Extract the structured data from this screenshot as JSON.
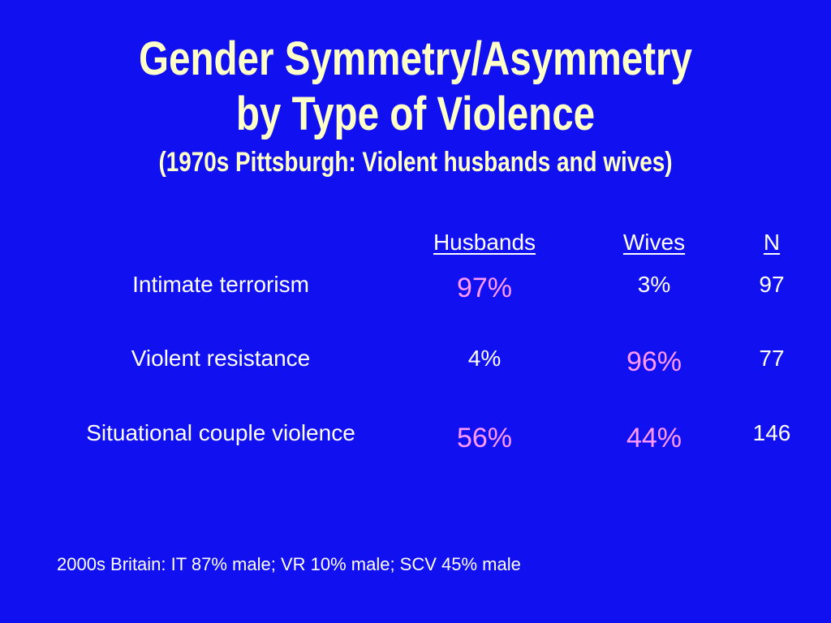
{
  "slide": {
    "title_line1": "Gender Symmetry/Asymmetry",
    "title_line2": "by Type of Violence",
    "subtitle": "(1970s Pittsburgh: Violent husbands and wives)"
  },
  "table": {
    "headers": [
      "Husbands",
      "Wives",
      "N"
    ],
    "rows": [
      {
        "label": "Intimate terrorism",
        "husbands": "97%",
        "wives": "3%",
        "n": "97"
      },
      {
        "label": "Violent resistance",
        "husbands": "4%",
        "wives": "96%",
        "n": "77"
      },
      {
        "label": "Situational couple violence",
        "husbands": "56%",
        "wives": "44%",
        "n": "146"
      }
    ]
  },
  "footnote": "2000s Britain: IT 87% male; VR 10% male; SCV 45% male",
  "colors": {
    "background": "#1010f0",
    "title": "#ffffc8",
    "text": "#ffffff",
    "highlight": "#ff99ff"
  }
}
